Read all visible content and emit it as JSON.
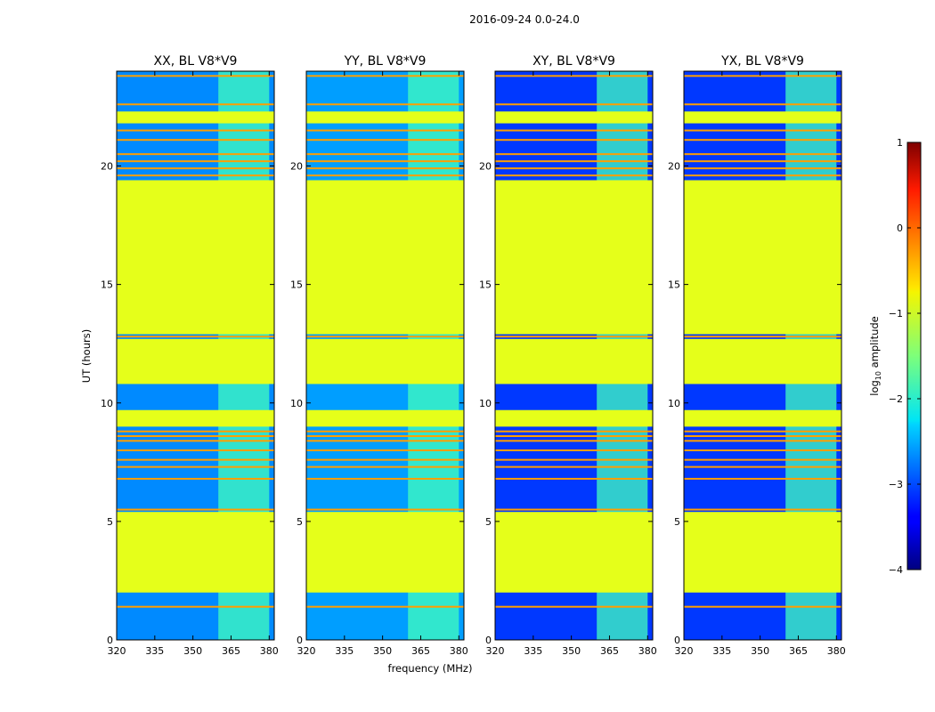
{
  "figure_title": "2016-09-24 0.0-24.0",
  "chart_data": {
    "type": "heatmap",
    "title": "2016-09-24 0.0-24.0",
    "xlabel": "frequency (MHz)",
    "ylabel": "UT (hours)",
    "xlim": [
      320,
      382
    ],
    "ylim": [
      0,
      24
    ],
    "xticks": [
      320,
      335,
      350,
      365,
      380
    ],
    "yticks": [
      0,
      5,
      10,
      15,
      20
    ],
    "panels": [
      {
        "title": "XX, BL V8*V9",
        "pol": "XX"
      },
      {
        "title": "YY, BL V8*V9",
        "pol": "YY"
      },
      {
        "title": "XY, BL V8*V9",
        "pol": "XY"
      },
      {
        "title": "YX, BL V8*V9",
        "pol": "YX"
      }
    ],
    "flagged_value": -1,
    "flagged_ut_ranges": [
      [
        2.0,
        5.4
      ],
      [
        9.0,
        9.7
      ],
      [
        10.8,
        12.7
      ],
      [
        12.9,
        19.4
      ],
      [
        21.8,
        22.3
      ]
    ],
    "narrow_lines_ut": [
      1.4,
      5.5,
      6.8,
      7.3,
      7.6,
      8.0,
      8.4,
      8.6,
      8.8,
      12.8,
      19.6,
      19.9,
      20.2,
      20.5,
      21.1,
      21.5,
      22.6,
      23.8
    ],
    "background_log_amplitude": {
      "XX": -2.7,
      "YY": -2.6,
      "XY": -3.1,
      "YX": -3.1
    },
    "rfi_band_mhz": [
      360,
      380
    ],
    "rfi_log_amplitude": -1.8,
    "colorbar": {
      "label": "log10 amplitude",
      "label_base": "log",
      "label_sub": "10",
      "label_rest": " amplitude",
      "vmin": -4,
      "vmax": 1,
      "ticks": [
        -4,
        -3,
        -2,
        -1,
        0,
        1
      ],
      "tick_labels": [
        "−4",
        "−3",
        "−2",
        "−1",
        "0",
        "1"
      ],
      "colormap": "jet"
    }
  }
}
